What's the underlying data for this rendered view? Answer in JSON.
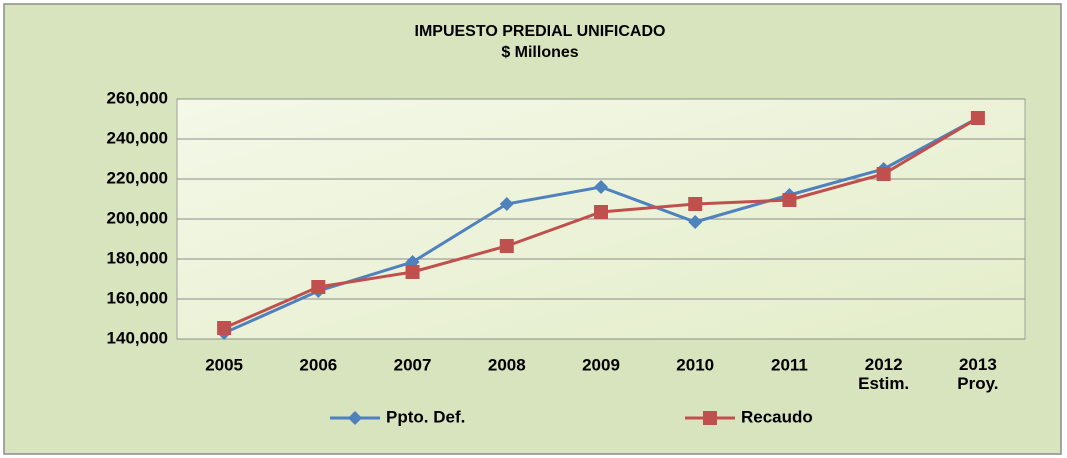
{
  "chart_data": {
    "type": "line",
    "title": "IMPUESTO PREDIAL UNIFICADO",
    "subtitle": "$ Millones",
    "categories": [
      "2005",
      "2006",
      "2007",
      "2008",
      "2009",
      "2010",
      "2011",
      "2012\nEstim.",
      "2013\nProy."
    ],
    "series": [
      {
        "name": "Ppto. Def.",
        "color": "#4f81bd",
        "marker": "diamond",
        "values": [
          143000,
          164000,
          178500,
          207500,
          216000,
          198500,
          212000,
          225000,
          250500
        ]
      },
      {
        "name": "Recaudo",
        "color": "#c0504d",
        "marker": "square",
        "values": [
          145500,
          166000,
          173500,
          186500,
          203500,
          207500,
          209500,
          222500,
          250500
        ]
      }
    ],
    "ylim": [
      140000,
      260000
    ],
    "yticks": [
      {
        "value": 140000,
        "label": "140,000"
      },
      {
        "value": 160000,
        "label": "160,000"
      },
      {
        "value": 180000,
        "label": "180,000"
      },
      {
        "value": 200000,
        "label": "200,000"
      },
      {
        "value": 220000,
        "label": "220,000"
      },
      {
        "value": 240000,
        "label": "240,000"
      },
      {
        "value": 260000,
        "label": "260,000"
      }
    ],
    "grid": true,
    "legend": "bottom"
  }
}
